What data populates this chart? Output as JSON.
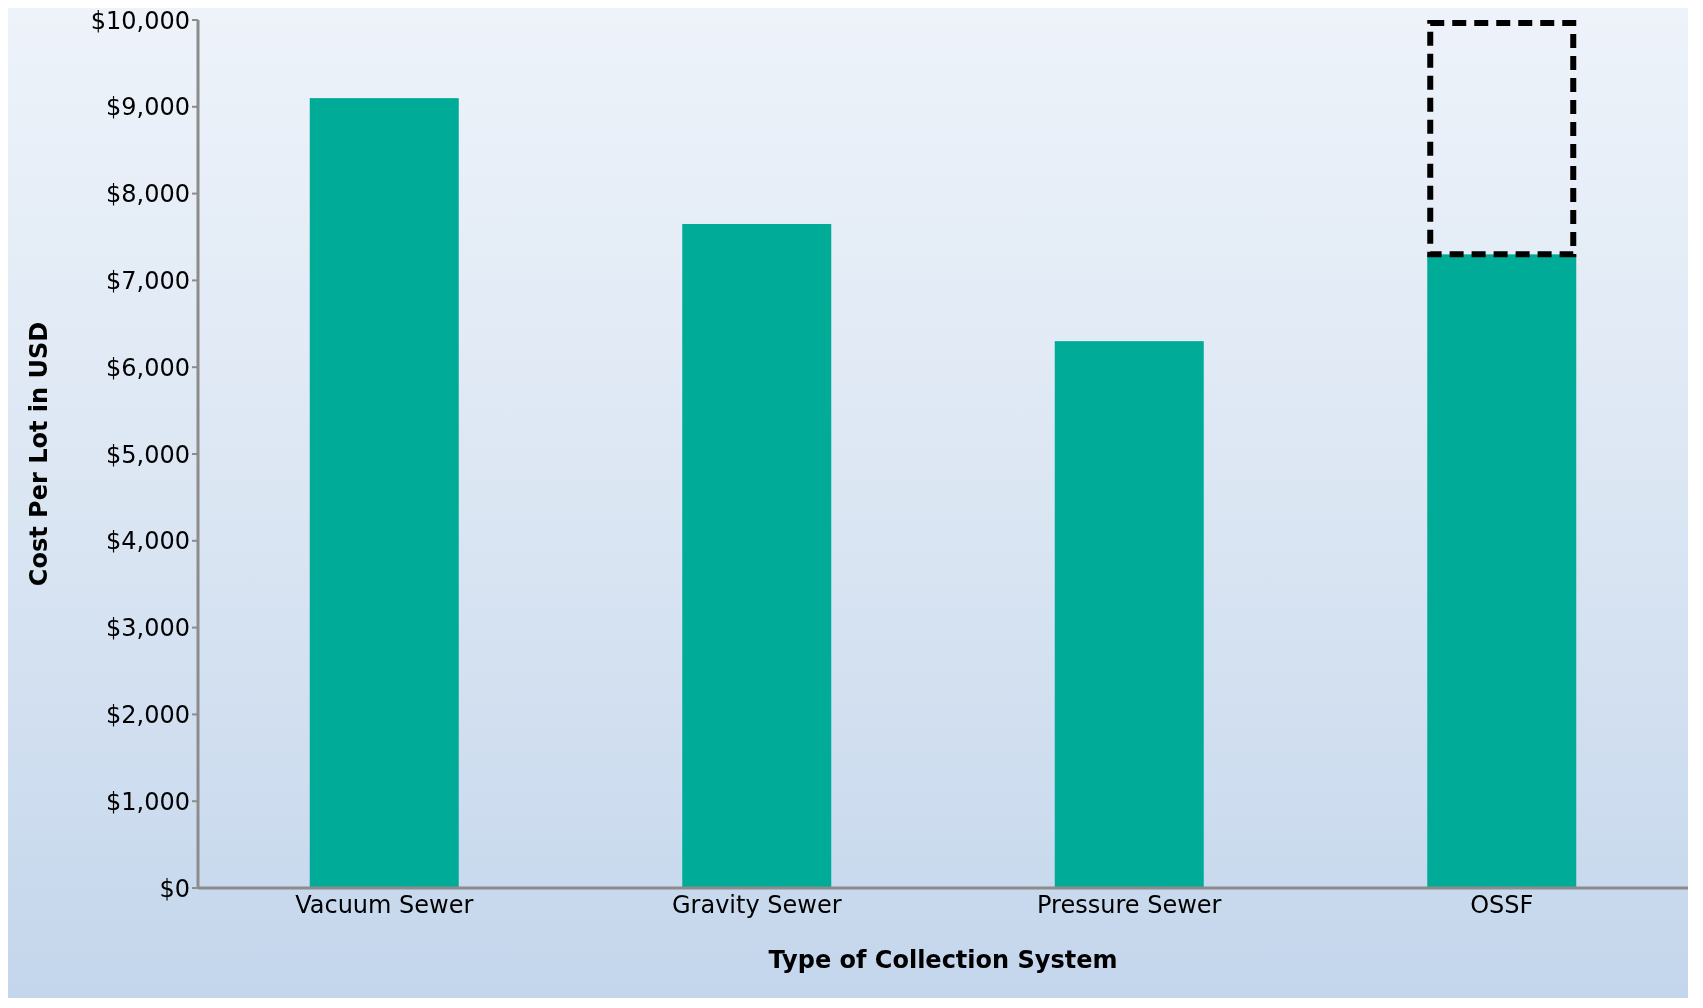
{
  "chart_data": {
    "type": "bar",
    "xlabel": "Type of Collection System",
    "ylabel": "Cost Per Lot in USD",
    "categories": [
      "Vacuum Sewer",
      "Gravity Sewer",
      "Pressure Sewer",
      "OSSF"
    ],
    "stacked": true,
    "series": [
      {
        "color": "#00ac98",
        "values": [
          9100,
          7650,
          6300,
          7300
        ]
      },
      {
        "color": "#000000",
        "line_style": "dashed",
        "values": [
          null,
          null,
          null,
          2700
        ]
      }
    ],
    "ylim": [
      0,
      10000
    ],
    "yticks": [
      {
        "value": 0,
        "label": "$0"
      },
      {
        "value": 1000,
        "label": "$1,000"
      },
      {
        "value": 2000,
        "label": "$2,000"
      },
      {
        "value": 3000,
        "label": "$3,000"
      },
      {
        "value": 4000,
        "label": "$4,000"
      },
      {
        "value": 5000,
        "label": "$5,000"
      },
      {
        "value": 6000,
        "label": "$6,000"
      },
      {
        "value": 7000,
        "label": "$7,000"
      },
      {
        "value": 8000,
        "label": "$8,000"
      },
      {
        "value": 9000,
        "label": "$9,000"
      },
      {
        "value": 10000,
        "label": "$10,000"
      }
    ],
    "grid": false
  }
}
